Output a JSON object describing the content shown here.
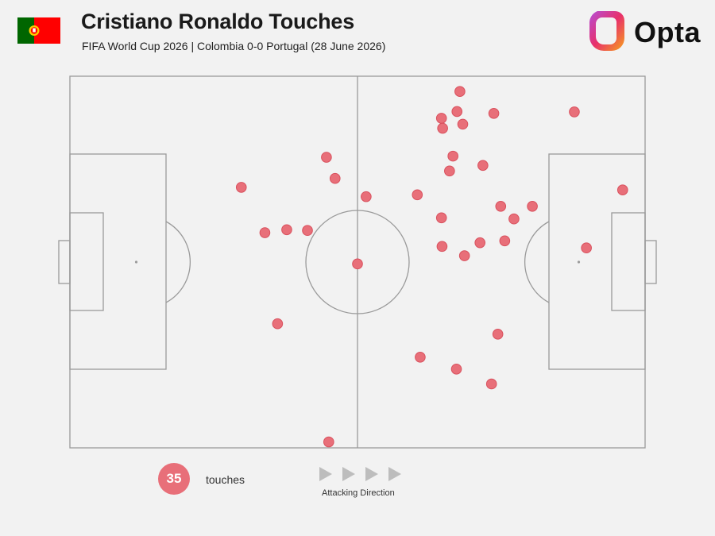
{
  "header": {
    "title": "Cristiano Ronaldo Touches",
    "subtitle": "FIFA World Cup 2026 | Colombia 0-0 Portugal (28 June 2026)",
    "logo_text": "Opta"
  },
  "colors": {
    "background": "#f2f2f2",
    "pitch_lines": "#9a9a9a",
    "touch_marker": "#e86f79",
    "arrow": "#bdbdbd",
    "flag_green": "#006600",
    "flag_red": "#ff0000",
    "logo_gradient": [
      "#b44fd8",
      "#e8306b",
      "#f7a21b"
    ]
  },
  "icons": {
    "flag": "portugal-flag-icon",
    "logo": "opta-logo-icon",
    "direction": "play-arrow-icon"
  },
  "legend": {
    "count": "35",
    "count_label": "touches",
    "direction_label": "Attacking Direction"
  },
  "chart_data": {
    "type": "scatter",
    "title": "Cristiano Ronaldo Touches",
    "description_axes": "pitch coordinates, x = 0–100 in attacking direction (left to right), y = 0–100 from top touchline",
    "xlim": [
      0,
      100
    ],
    "ylim": [
      0,
      100
    ],
    "series": [
      {
        "name": "touches",
        "points": [
          [
            67.8,
            4.1
          ],
          [
            67.3,
            9.5
          ],
          [
            64.6,
            11.3
          ],
          [
            73.7,
            10.0
          ],
          [
            87.7,
            9.6
          ],
          [
            64.8,
            14.0
          ],
          [
            68.3,
            12.9
          ],
          [
            66.6,
            21.5
          ],
          [
            71.8,
            24.0
          ],
          [
            66.0,
            25.5
          ],
          [
            44.6,
            21.8
          ],
          [
            46.1,
            27.5
          ],
          [
            29.8,
            29.9
          ],
          [
            51.5,
            32.4
          ],
          [
            60.4,
            31.9
          ],
          [
            64.6,
            38.1
          ],
          [
            74.9,
            35.0
          ],
          [
            80.4,
            35.0
          ],
          [
            77.2,
            38.4
          ],
          [
            96.1,
            30.6
          ],
          [
            33.9,
            42.1
          ],
          [
            37.7,
            41.3
          ],
          [
            41.3,
            41.5
          ],
          [
            64.7,
            45.8
          ],
          [
            71.3,
            44.8
          ],
          [
            75.6,
            44.3
          ],
          [
            68.6,
            48.3
          ],
          [
            89.8,
            46.2
          ],
          [
            50.0,
            50.5
          ],
          [
            36.1,
            66.6
          ],
          [
            74.4,
            69.4
          ],
          [
            60.9,
            75.6
          ],
          [
            67.2,
            78.8
          ],
          [
            73.3,
            82.8
          ],
          [
            45.0,
            98.4
          ]
        ]
      }
    ]
  }
}
